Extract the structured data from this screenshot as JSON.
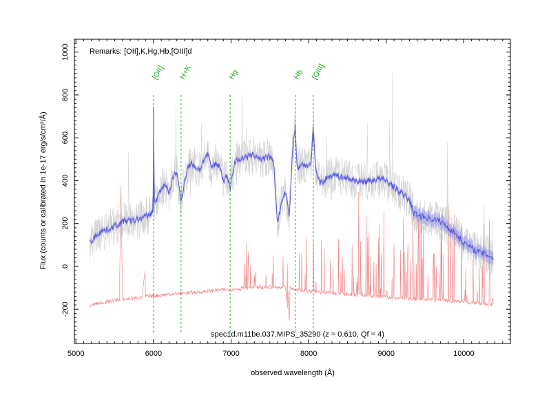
{
  "chart_data": {
    "type": "line",
    "title": "",
    "xlabel": "observed wavelength (Å)",
    "ylabel": "Flux (counts or calibrated in 1e-17 erg/s/cm²/Å)",
    "xlim": [
      4980,
      10600
    ],
    "ylim": [
      -360,
      1060
    ],
    "x_ticks": [
      5000,
      6000,
      7000,
      8000,
      9000,
      10000
    ],
    "y_ticks": [
      -200,
      0,
      200,
      400,
      600,
      800,
      1000
    ],
    "remarks": "Remarks: [OII],K,Hg,Hb,[OIII]d",
    "caption": "spec1d.m11be.037.MIPS_35290 (z = 0.610, Qf = 4)",
    "grid": false,
    "colors": {
      "flux": "#5555dd",
      "error_band": "#9999ee",
      "raw": "#c8c8c8",
      "sky": "#f08080",
      "lines": "#22aa22",
      "axes": "#000000"
    },
    "lines": [
      {
        "label": "[OII]",
        "x": 6001
      },
      {
        "label": "H+K",
        "x": 6355
      },
      {
        "label": "Hg",
        "x": 6988
      },
      {
        "label": "Hb",
        "x": 7826
      },
      {
        "label": "[OIII]",
        "x": 8060
      }
    ],
    "series": [
      {
        "role": "flux",
        "x": [
          5180,
          5250,
          5320,
          5400,
          5480,
          5560,
          5640,
          5720,
          5800,
          5880,
          5950,
          5995,
          6001,
          6010,
          6050,
          6100,
          6150,
          6200,
          6250,
          6300,
          6355,
          6400,
          6450,
          6500,
          6550,
          6600,
          6650,
          6700,
          6750,
          6800,
          6850,
          6900,
          6950,
          6988,
          7050,
          7100,
          7200,
          7300,
          7400,
          7500,
          7550,
          7600,
          7650,
          7700,
          7750,
          7790,
          7826,
          7850,
          7900,
          7950,
          8000,
          8030,
          8060,
          8090,
          8150,
          8200,
          8300,
          8400,
          8500,
          8600,
          8700,
          8800,
          8900,
          9000,
          9100,
          9200,
          9300,
          9350,
          9400,
          9500,
          9600,
          9700,
          9800,
          9900,
          10000,
          10100,
          10200,
          10300,
          10380
        ],
        "y": [
          110,
          140,
          165,
          170,
          185,
          200,
          215,
          210,
          220,
          230,
          240,
          260,
          745,
          290,
          320,
          360,
          390,
          330,
          420,
          440,
          300,
          400,
          470,
          480,
          460,
          450,
          500,
          520,
          460,
          480,
          470,
          400,
          420,
          370,
          490,
          500,
          510,
          520,
          500,
          510,
          480,
          200,
          300,
          350,
          230,
          530,
          660,
          450,
          480,
          470,
          470,
          470,
          650,
          450,
          390,
          400,
          430,
          420,
          410,
          400,
          395,
          400,
          410,
          400,
          370,
          340,
          310,
          250,
          240,
          230,
          220,
          210,
          180,
          150,
          110,
          85,
          65,
          55,
          40
        ]
      },
      {
        "role": "sky",
        "x": [
          5180,
          5250,
          5400,
          5560,
          5580,
          5600,
          5700,
          5850,
          5890,
          5900,
          6000,
          6100,
          6200,
          6300,
          6400,
          6500,
          6600,
          6700,
          6800,
          6900,
          7000,
          7100,
          7200,
          7300,
          7400,
          7500,
          7600,
          7700,
          7750,
          7760,
          7800,
          7900,
          8000,
          8100,
          8200,
          8300,
          8400,
          8500,
          8600,
          8700,
          8800,
          8900,
          9000,
          9100,
          9200,
          9300,
          9400,
          9500,
          9600,
          9700,
          9800,
          9900,
          10000,
          10100,
          10200,
          10300,
          10380
        ],
        "y": [
          -185,
          -175,
          -165,
          -155,
          380,
          -155,
          -150,
          -145,
          -30,
          -140,
          -138,
          -135,
          -130,
          -128,
          -125,
          -122,
          -120,
          -115,
          -112,
          -110,
          -108,
          -105,
          -100,
          -100,
          -98,
          -96,
          -95,
          -98,
          -250,
          -100,
          -110,
          -112,
          -115,
          -118,
          -120,
          -125,
          -128,
          -130,
          -133,
          -135,
          -138,
          -140,
          -142,
          -145,
          -148,
          -150,
          -152,
          -155,
          -158,
          -160,
          -162,
          -165,
          -168,
          -170,
          -172,
          -175,
          -178
        ]
      }
    ]
  }
}
